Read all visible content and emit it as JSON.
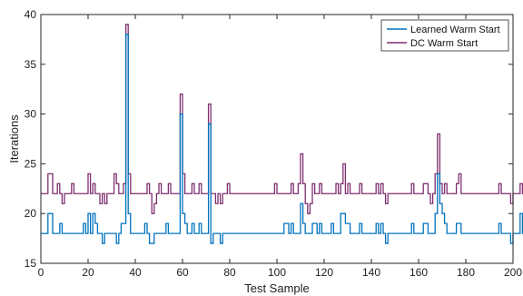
{
  "chart_data": {
    "type": "line",
    "step": true,
    "title": "",
    "xlabel": "Test Sample",
    "ylabel": "Iterations",
    "xlim": [
      0,
      200
    ],
    "ylim": [
      15,
      40
    ],
    "xticks": [
      0,
      20,
      40,
      60,
      80,
      100,
      120,
      140,
      160,
      180,
      200
    ],
    "yticks": [
      15,
      20,
      25,
      30,
      35,
      40
    ],
    "grid": false,
    "legend_position": "top-right",
    "series": [
      {
        "name": "Learned Warm Start",
        "color": "#0072BD",
        "values": [
          18,
          18,
          18,
          20,
          20,
          18,
          18,
          18,
          19,
          18,
          18,
          18,
          18,
          18,
          18,
          18,
          18,
          18,
          19,
          18,
          20,
          18,
          20,
          19,
          18,
          18,
          17,
          18,
          18,
          18,
          18,
          18,
          17,
          18,
          19,
          19,
          38,
          20,
          18,
          18,
          18,
          18,
          18,
          18,
          19,
          18,
          17,
          17,
          18,
          18,
          18,
          18,
          18,
          19,
          18,
          18,
          18,
          18,
          18,
          30,
          20,
          19,
          18,
          18,
          19,
          18,
          18,
          19,
          18,
          18,
          18,
          29,
          17,
          18,
          18,
          18,
          17,
          18,
          18,
          18,
          18,
          18,
          18,
          18,
          18,
          18,
          18,
          18,
          18,
          18,
          18,
          18,
          18,
          18,
          18,
          18,
          18,
          18,
          18,
          18,
          18,
          18,
          18,
          19,
          19,
          18,
          19,
          18,
          18,
          18,
          21,
          19,
          18,
          18,
          18,
          19,
          19,
          18,
          19,
          18,
          18,
          18,
          18,
          19,
          18,
          18,
          18,
          20,
          20,
          19,
          19,
          18,
          18,
          18,
          18,
          19,
          18,
          18,
          18,
          18,
          18,
          18,
          19,
          18,
          19,
          18,
          17,
          18,
          18,
          18,
          18,
          18,
          18,
          18,
          18,
          18,
          18,
          19,
          18,
          18,
          18,
          18,
          19,
          19,
          18,
          18,
          18,
          20,
          24,
          21,
          20,
          19,
          18,
          18,
          18,
          18,
          19,
          19,
          18,
          18,
          18,
          18,
          18,
          18,
          18,
          18,
          18,
          18,
          18,
          18,
          18,
          18,
          18,
          18,
          19,
          18,
          18,
          18,
          18,
          17,
          18,
          18,
          18,
          20,
          18,
          17
        ]
      },
      {
        "name": "DC Warm Start",
        "color": "#7E2F6E",
        "values": [
          22,
          22,
          22,
          24,
          24,
          22,
          22,
          23,
          22,
          21,
          22,
          22,
          22,
          23,
          22,
          22,
          22,
          22,
          22,
          22,
          24,
          22,
          23,
          22,
          22,
          21,
          22,
          21,
          22,
          22,
          22,
          24,
          23,
          22,
          22,
          23,
          39,
          24,
          22,
          22,
          22,
          22,
          22,
          22,
          22,
          23,
          22,
          20,
          21,
          22,
          23,
          22,
          22,
          22,
          23,
          22,
          22,
          22,
          22,
          32,
          24,
          22,
          22,
          22,
          23,
          22,
          22,
          23,
          22,
          22,
          22,
          31,
          22,
          22,
          21,
          22,
          21,
          22,
          22,
          23,
          22,
          22,
          22,
          22,
          22,
          22,
          22,
          22,
          22,
          22,
          22,
          22,
          22,
          22,
          22,
          22,
          22,
          22,
          22,
          23,
          22,
          22,
          22,
          22,
          22,
          22,
          23,
          22,
          22,
          23,
          26,
          23,
          21,
          20,
          21,
          23,
          22,
          22,
          23,
          22,
          22,
          22,
          22,
          22,
          22,
          23,
          22,
          23,
          25,
          22,
          23,
          22,
          22,
          22,
          22,
          23,
          22,
          22,
          22,
          22,
          22,
          22,
          23,
          22,
          23,
          22,
          21,
          22,
          22,
          22,
          22,
          22,
          22,
          22,
          22,
          22,
          22,
          23,
          22,
          22,
          22,
          22,
          23,
          23,
          22,
          21,
          22,
          24,
          28,
          23,
          22,
          23,
          22,
          22,
          22,
          22,
          23,
          24,
          22,
          22,
          22,
          22,
          22,
          22,
          22,
          22,
          22,
          22,
          22,
          22,
          22,
          22,
          22,
          22,
          23,
          22,
          22,
          22,
          22,
          21,
          22,
          22,
          22,
          23,
          22,
          20
        ]
      }
    ]
  }
}
